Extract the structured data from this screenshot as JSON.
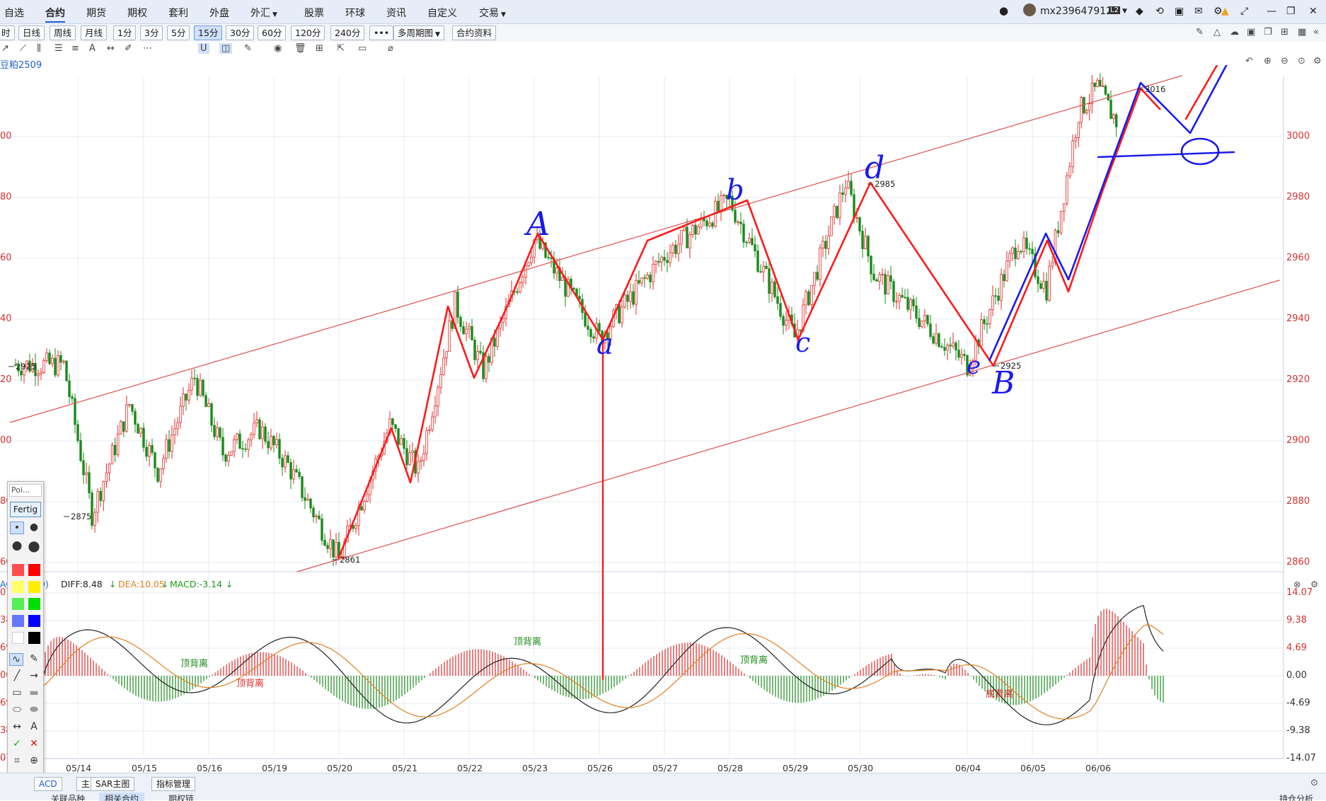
{
  "menu": {
    "items": [
      "自选",
      "合约",
      "期货",
      "期权",
      "套利",
      "外盘",
      "外汇",
      "股票",
      "环球",
      "资讯",
      "自定义",
      "交易"
    ],
    "active": "合约",
    "user": "mx239647912",
    "user_badge": "L2"
  },
  "periods": {
    "items": [
      "时",
      "日线",
      "周线",
      "月线",
      "1分",
      "3分",
      "5分",
      "15分",
      "30分",
      "60分",
      "120分",
      "240分",
      "•••",
      "多周期图",
      "合约资料"
    ],
    "selected": "15分"
  },
  "symbol_label": "豆粕2509",
  "price_axis": {
    "labels": [
      "3000",
      "2980",
      "2960",
      "2940",
      "2920",
      "2900",
      "2880",
      "2860"
    ],
    "left_cut_labels": [
      "00",
      "80",
      "60",
      "40",
      "20",
      "00",
      "80",
      "60"
    ]
  },
  "macd_axis": {
    "labels": [
      "14.07",
      "9.38",
      "4.69",
      "0.00",
      "-4.69",
      "-9.38",
      "-14.07"
    ],
    "left_cut_labels": [
      "07",
      "38",
      "69",
      "00",
      "69",
      "38",
      "07"
    ]
  },
  "dates": [
    "05/14",
    "05/15",
    "05/16",
    "05/19",
    "05/20",
    "05/21",
    "05/22",
    "05/23",
    "05/26",
    "05/27",
    "05/28",
    "05/29",
    "05/30",
    "06/04",
    "06/05",
    "06/06"
  ],
  "price_marks": [
    "2925",
    "2875",
    "2861",
    "2985",
    "2925",
    "3016"
  ],
  "macd_header": {
    "name": "ACD",
    "params": "9)",
    "diff": "DIFF:8.48",
    "dea": "DEA:10.05",
    "macd": "MACD:-3.14"
  },
  "macd_annotations": [
    "顶背离",
    "顶背离",
    "顶背离",
    "顶背离",
    "底背离",
    "底背离"
  ],
  "handwritten_labels": [
    "A",
    "a",
    "b",
    "c",
    "d",
    "e",
    "B"
  ],
  "palette": {
    "title": "Poi...",
    "done_label": "Fertig",
    "colors": [
      "#ff4d4d",
      "#ff0000",
      "#ffff66",
      "#ffee00",
      "#55ee55",
      "#00dd00",
      "#6677ff",
      "#0000ff",
      "#ffffff",
      "#000000"
    ]
  },
  "bottom": {
    "buttons": [
      "ACD",
      "主",
      "SAR主图",
      "指标管理"
    ],
    "tabs": [
      "关联品种",
      "相关合约",
      "期权链"
    ],
    "right_tab": "持仓分析"
  },
  "chart_data": {
    "type": "candlestick",
    "symbol": "豆粕2509",
    "period": "15分",
    "x_categories": [
      "05/14",
      "05/15",
      "05/16",
      "05/19",
      "05/20",
      "05/21",
      "05/22",
      "05/23",
      "05/26",
      "05/27",
      "05/28",
      "05/29",
      "05/30",
      "06/04",
      "06/05",
      "06/06"
    ],
    "ylim": [
      2855,
      3018
    ],
    "price_path": [
      {
        "date": "05/14",
        "close": 2925
      },
      {
        "date": "05/14",
        "close": 2876
      },
      {
        "date": "05/15",
        "close": 2912
      },
      {
        "date": "05/15",
        "close": 2890
      },
      {
        "date": "05/16",
        "close": 2921
      },
      {
        "date": "05/16",
        "close": 2896
      },
      {
        "date": "05/19",
        "close": 2904
      },
      {
        "date": "05/19",
        "close": 2892
      },
      {
        "date": "05/20",
        "close": 2861
      },
      {
        "date": "05/21",
        "close": 2905
      },
      {
        "date": "05/21",
        "close": 2890
      },
      {
        "date": "05/22",
        "close": 2945
      },
      {
        "date": "05/22",
        "close": 2923
      },
      {
        "date": "05/23",
        "close": 2966
      },
      {
        "date": "05/26",
        "close": 2934
      },
      {
        "date": "05/27",
        "close": 2961
      },
      {
        "date": "05/28",
        "close": 2979
      },
      {
        "date": "05/29",
        "close": 2934
      },
      {
        "date": "05/30",
        "close": 2985
      },
      {
        "date": "05/30",
        "close": 2955
      },
      {
        "date": "06/04",
        "close": 2925
      },
      {
        "date": "06/05",
        "close": 2966
      },
      {
        "date": "06/05",
        "close": 2950
      },
      {
        "date": "06/06",
        "close": 3008
      },
      {
        "date": "06/06",
        "close": 3016
      },
      {
        "date": "06/06",
        "close": 3005
      }
    ],
    "macd": {
      "ylim": [
        -14.07,
        14.07
      ],
      "diff_last": 8.48,
      "dea_last": 10.05,
      "macd_last": -3.14
    }
  }
}
